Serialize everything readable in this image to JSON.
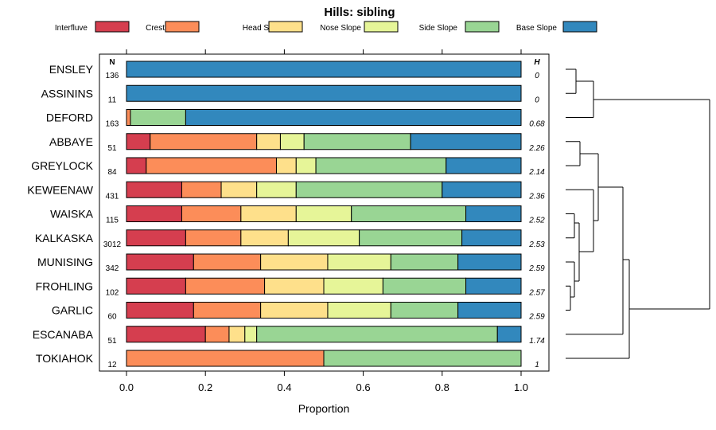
{
  "chart_data": {
    "type": "bar",
    "stacked": true,
    "orientation": "horizontal",
    "title": "Hills: sibling",
    "xlabel": "Proportion",
    "ylabel": "",
    "xlim": [
      0,
      1
    ],
    "x_ticks": [
      "0.0",
      "0.2",
      "0.4",
      "0.6",
      "0.8",
      "1.0"
    ],
    "n_header": "N",
    "h_header": "H",
    "legend": [
      {
        "name": "Interfluve",
        "color": "#D53E4F"
      },
      {
        "name": "Crest",
        "color": "#FC8D59"
      },
      {
        "name": "Head Slope",
        "color": "#FEE08B"
      },
      {
        "name": "Nose Slope",
        "color": "#E6F598"
      },
      {
        "name": "Side Slope",
        "color": "#99D594"
      },
      {
        "name": "Base Slope",
        "color": "#3288BD"
      }
    ],
    "categories": [
      "ENSLEY",
      "ASSININS",
      "DEFORD",
      "ABBAYE",
      "GREYLOCK",
      "KEWEENAW",
      "WAISKA",
      "KALKASKA",
      "MUNISING",
      "FROHLING",
      "GARLIC",
      "ESCANABA",
      "TOKIAHOK"
    ],
    "n_values": [
      "136",
      "11",
      "163",
      "51",
      "84",
      "431",
      "115",
      "3012",
      "342",
      "102",
      "60",
      "51",
      "12"
    ],
    "h_values": [
      "0",
      "0",
      "0.68",
      "2.26",
      "2.14",
      "2.36",
      "2.52",
      "2.53",
      "2.59",
      "2.57",
      "2.59",
      "1.74",
      "1"
    ],
    "series": [
      {
        "name": "Interfluve",
        "values": [
          0,
          0,
          0,
          0.06,
          0.05,
          0.14,
          0.14,
          0.15,
          0.17,
          0.15,
          0.17,
          0.2,
          0
        ]
      },
      {
        "name": "Crest",
        "values": [
          0,
          0,
          0.01,
          0.27,
          0.33,
          0.1,
          0.15,
          0.14,
          0.17,
          0.2,
          0.17,
          0.06,
          0.5
        ]
      },
      {
        "name": "Head Slope",
        "values": [
          0,
          0,
          0,
          0.06,
          0.05,
          0.09,
          0.14,
          0.12,
          0.17,
          0.15,
          0.17,
          0.04,
          0
        ]
      },
      {
        "name": "Nose Slope",
        "values": [
          0,
          0,
          0,
          0.06,
          0.05,
          0.1,
          0.14,
          0.18,
          0.16,
          0.15,
          0.16,
          0.03,
          0
        ]
      },
      {
        "name": "Side Slope",
        "values": [
          0,
          0,
          0.14,
          0.27,
          0.33,
          0.37,
          0.29,
          0.26,
          0.17,
          0.21,
          0.17,
          0.61,
          0.5
        ]
      },
      {
        "name": "Base Slope",
        "values": [
          1,
          1,
          0.85,
          0.28,
          0.19,
          0.2,
          0.14,
          0.15,
          0.16,
          0.14,
          0.16,
          0.06,
          0
        ]
      }
    ]
  }
}
